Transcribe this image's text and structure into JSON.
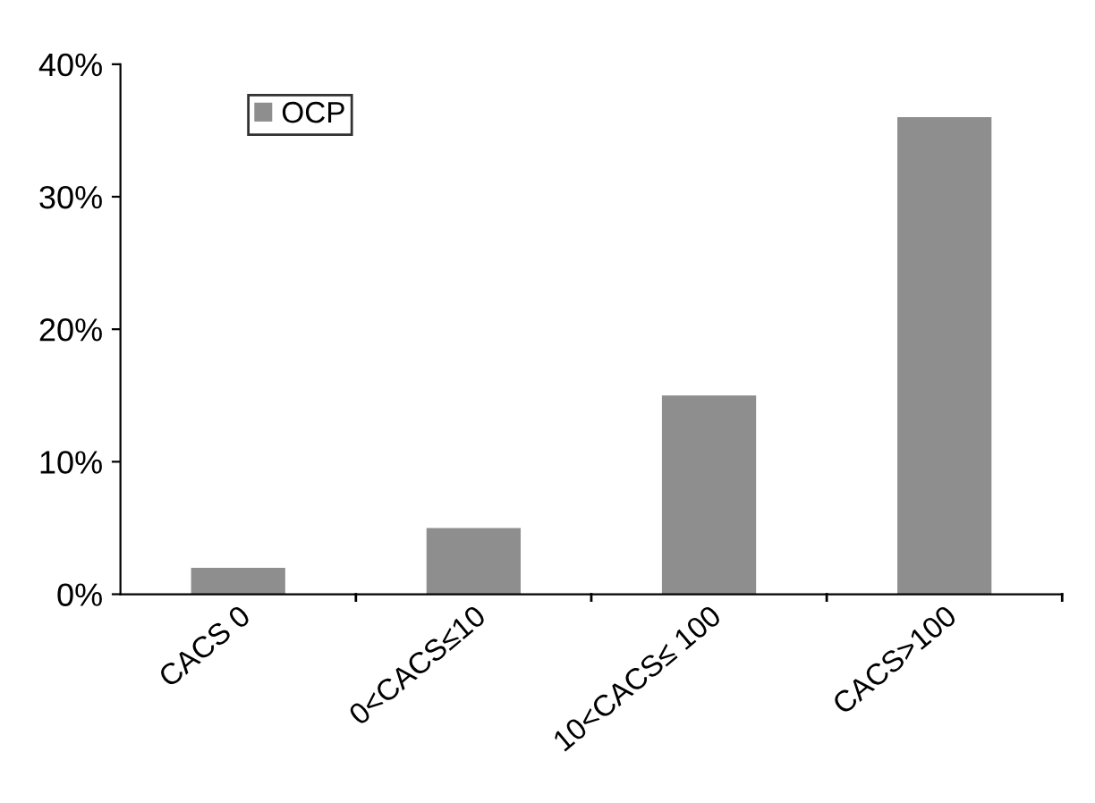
{
  "chart_data": {
    "type": "bar",
    "categories": [
      "CACS 0",
      "0<CACS≤10",
      "10<CACS≤ 100",
      "CACS>100"
    ],
    "series": [
      {
        "name": "OCP",
        "color": "#8e8e8e",
        "values": [
          2,
          5,
          15,
          36
        ]
      }
    ],
    "ylim": [
      0,
      40
    ],
    "yticks": [
      {
        "value": 0,
        "label": "0%"
      },
      {
        "value": 10,
        "label": "10%"
      },
      {
        "value": 20,
        "label": "20%"
      },
      {
        "value": 30,
        "label": "30%"
      },
      {
        "value": 40,
        "label": "40%"
      }
    ],
    "legend": "top left",
    "grid": false
  }
}
